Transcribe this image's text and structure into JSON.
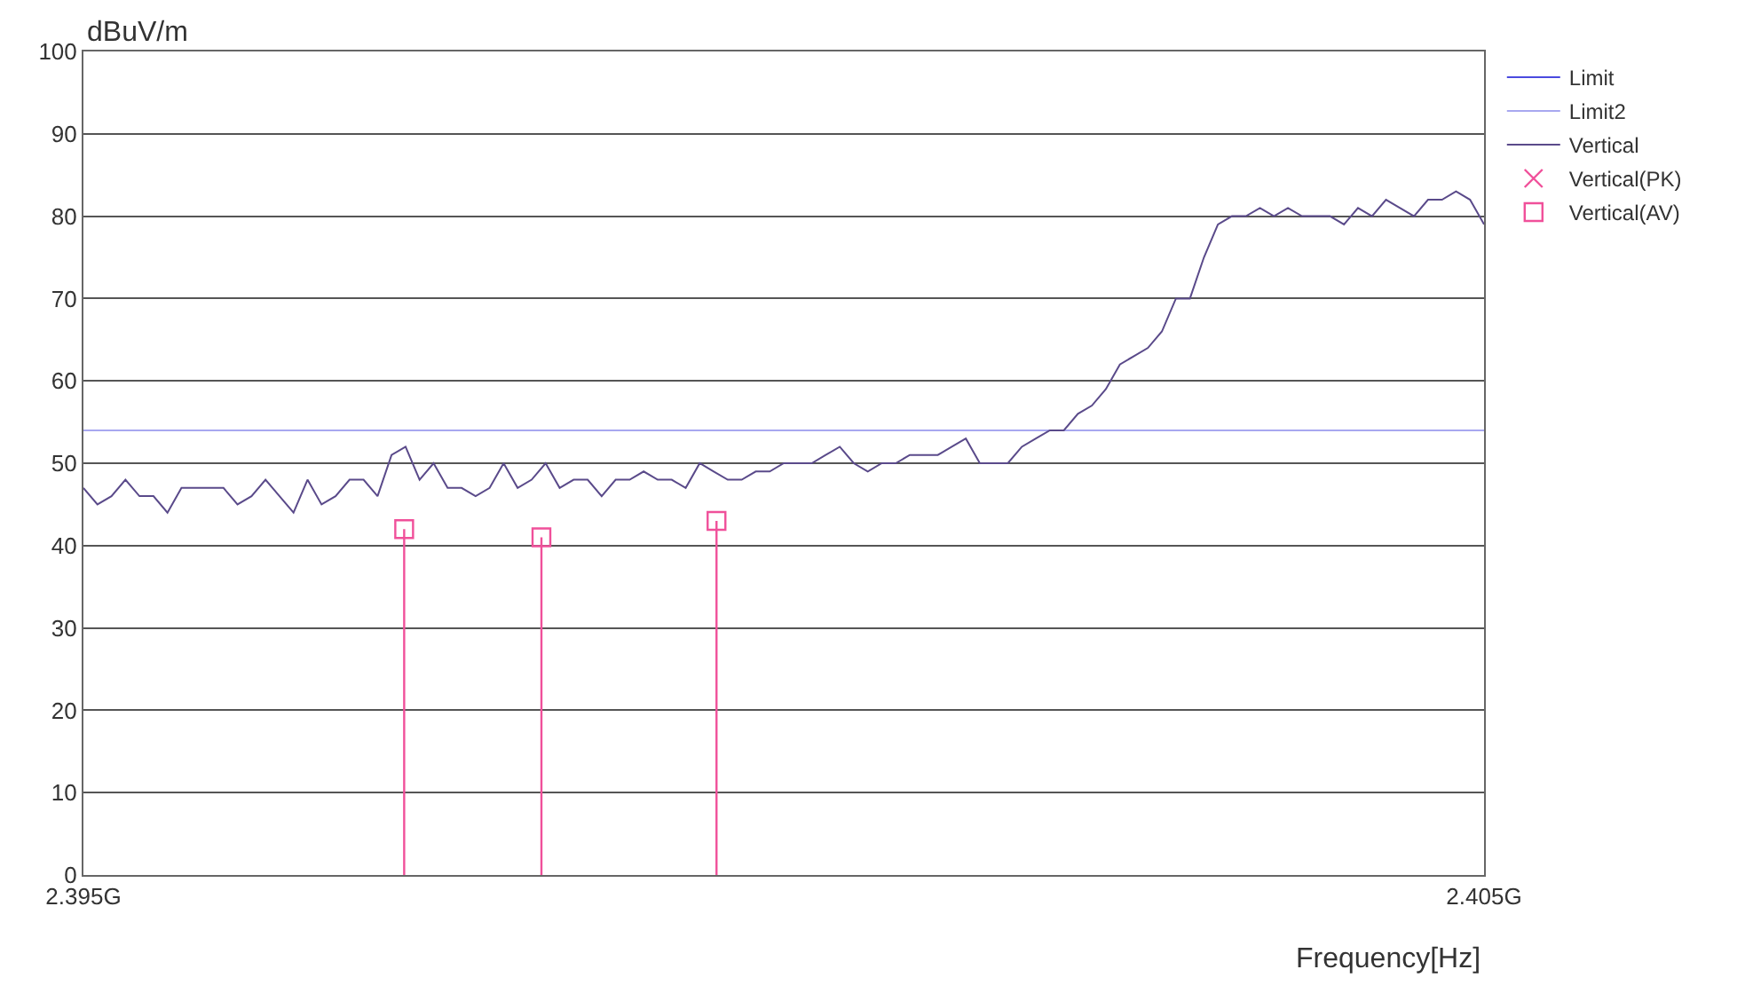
{
  "chart_data": {
    "type": "line",
    "xlabel": "Frequency[Hz]",
    "ylabel": "dBuV/m",
    "xlim": [
      2.395,
      2.405
    ],
    "xticks": [
      {
        "value": 2.395,
        "label": "2.395G"
      },
      {
        "value": 2.405,
        "label": "2.405G"
      }
    ],
    "ylim": [
      0,
      100
    ],
    "yticks": [
      0,
      10,
      20,
      30,
      40,
      50,
      60,
      70,
      80,
      90,
      100
    ],
    "grid": "y",
    "legend": "top right",
    "series": [
      {
        "name": "Limit",
        "color": "#4a4adf",
        "marker": "none"
      },
      {
        "name": "Limit2",
        "color": "#a8a8f0",
        "marker": "none",
        "x": [
          2.395,
          2.405
        ],
        "values": [
          54,
          54
        ]
      },
      {
        "name": "Vertical",
        "color": "#5a4a8a",
        "marker": "none",
        "x": [
          2.395,
          2.3951,
          2.3952,
          2.3953,
          2.3954,
          2.3955,
          2.3956,
          2.3957,
          2.3958,
          2.3959,
          2.396,
          2.3961,
          2.3962,
          2.3963,
          2.3964,
          2.3965,
          2.3966,
          2.3967,
          2.3968,
          2.3969,
          2.397,
          2.3971,
          2.3972,
          2.3973,
          2.3974,
          2.3975,
          2.3976,
          2.3977,
          2.3978,
          2.3979,
          2.398,
          2.3981,
          2.3982,
          2.3983,
          2.3984,
          2.3985,
          2.3986,
          2.3987,
          2.3988,
          2.3989,
          2.399,
          2.3991,
          2.3992,
          2.3993,
          2.3994,
          2.3995,
          2.3996,
          2.3997,
          2.3998,
          2.3999,
          2.4,
          2.4001,
          2.4002,
          2.4003,
          2.4004,
          2.4005,
          2.4006,
          2.4007,
          2.4008,
          2.4009,
          2.401,
          2.4011,
          2.4012,
          2.4013,
          2.4014,
          2.4015,
          2.4016,
          2.4017,
          2.4018,
          2.4019,
          2.402,
          2.4021,
          2.4022,
          2.4023,
          2.4024,
          2.4025,
          2.4026,
          2.4027,
          2.4028,
          2.4029,
          2.403,
          2.4031,
          2.4032,
          2.4033,
          2.4034,
          2.4035,
          2.4036,
          2.4037,
          2.4038,
          2.4039,
          2.404,
          2.4041,
          2.4042,
          2.4043,
          2.4044,
          2.4045,
          2.4046,
          2.4047,
          2.4048,
          2.4049,
          2.405
        ],
        "values": [
          47,
          45,
          46,
          48,
          46,
          46,
          44,
          47,
          47,
          47,
          47,
          45,
          46,
          48,
          46,
          44,
          48,
          45,
          46,
          48,
          48,
          46,
          51,
          52,
          48,
          50,
          47,
          47,
          46,
          47,
          50,
          47,
          48,
          50,
          47,
          48,
          48,
          46,
          48,
          48,
          49,
          48,
          48,
          47,
          50,
          49,
          48,
          48,
          49,
          49,
          50,
          50,
          50,
          51,
          52,
          50,
          49,
          50,
          50,
          51,
          51,
          51,
          52,
          53,
          50,
          50,
          50,
          52,
          53,
          54,
          54,
          56,
          57,
          59,
          62,
          63,
          64,
          66,
          70,
          70,
          75,
          79,
          80,
          80,
          81,
          80,
          81,
          80,
          80,
          80,
          79,
          81,
          80,
          82,
          81,
          80,
          82,
          82,
          83,
          82,
          79
        ]
      },
      {
        "name": "Vertical(PK)",
        "type": "scatter",
        "color": "#f0509a",
        "marker": "cross"
      },
      {
        "name": "Vertical(AV)",
        "type": "lollipop",
        "color": "#f0509a",
        "marker": "square",
        "x": [
          2.39729,
          2.39827,
          2.39952
        ],
        "values": [
          42,
          41,
          43
        ]
      }
    ]
  }
}
